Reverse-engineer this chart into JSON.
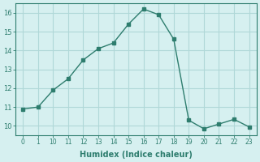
{
  "xlabel": "Humidex (Indice chaleur)",
  "x_indices": [
    0,
    1,
    2,
    3,
    4,
    5,
    6,
    7,
    8,
    9,
    10,
    11,
    12,
    13,
    14,
    15
  ],
  "x_labels": [
    "0",
    "1",
    "10",
    "11",
    "12",
    "13",
    "14",
    "15",
    "16",
    "17",
    "18",
    "19",
    "20",
    "21",
    "22",
    "23"
  ],
  "y_values": [
    10.9,
    11.0,
    11.9,
    12.5,
    13.5,
    14.1,
    14.4,
    15.4,
    16.2,
    15.9,
    14.6,
    10.3,
    9.85,
    10.1,
    10.35,
    9.95
  ],
  "line_color": "#2e7d6e",
  "bg_color": "#d6f0f0",
  "grid_color": "#b0d8d8",
  "tick_color": "#2e7d6e",
  "label_color": "#2e7d6e",
  "ylim": [
    9.5,
    16.5
  ],
  "yticks": [
    10,
    11,
    12,
    13,
    14,
    15,
    16
  ],
  "marker_size": 2.5,
  "line_width": 1.0
}
